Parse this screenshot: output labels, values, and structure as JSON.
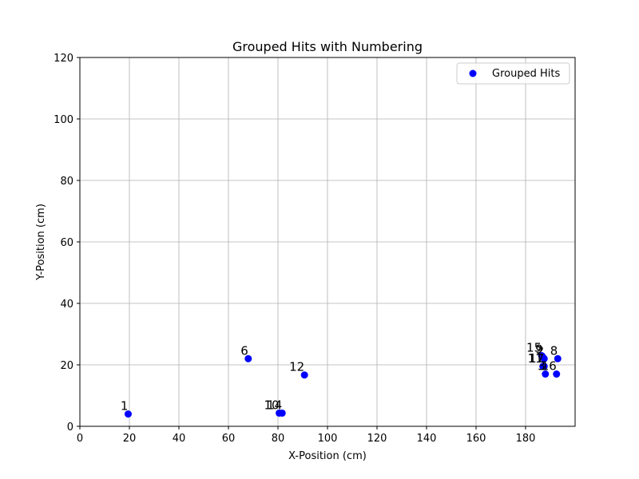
{
  "chart_data": {
    "type": "scatter",
    "title": "Grouped Hits with Numbering",
    "xlabel": "X-Position (cm)",
    "ylabel": "Y-Position (cm)",
    "xlim": [
      0,
      200
    ],
    "ylim": [
      0,
      120
    ],
    "xticks": [
      0,
      20,
      40,
      60,
      80,
      100,
      120,
      140,
      160,
      180
    ],
    "yticks": [
      0,
      20,
      40,
      60,
      80,
      100,
      120
    ],
    "grid": true,
    "legend": {
      "position": "upper right"
    },
    "series": [
      {
        "name": "Grouped Hits",
        "color": "#0000ff",
        "points": [
          {
            "x": 19.5,
            "y": 4.0,
            "label": "1"
          },
          {
            "x": 68.0,
            "y": 22.0,
            "label": "6"
          },
          {
            "x": 80.5,
            "y": 4.3,
            "label": "10"
          },
          {
            "x": 81.7,
            "y": 4.3,
            "label": "14"
          },
          {
            "x": 90.7,
            "y": 16.7,
            "label": "12"
          },
          {
            "x": 186.5,
            "y": 23.0,
            "label": "15"
          },
          {
            "x": 187.0,
            "y": 22.5,
            "label": "9"
          },
          {
            "x": 187.5,
            "y": 22.0,
            "label": "2"
          },
          {
            "x": 187.0,
            "y": 19.5,
            "label": "11"
          },
          {
            "x": 187.5,
            "y": 19.5,
            "label": "17"
          },
          {
            "x": 188.0,
            "y": 17.0,
            "label": "3"
          },
          {
            "x": 192.5,
            "y": 17.0,
            "label": "16"
          },
          {
            "x": 193.0,
            "y": 22.0,
            "label": "8"
          }
        ]
      }
    ]
  }
}
